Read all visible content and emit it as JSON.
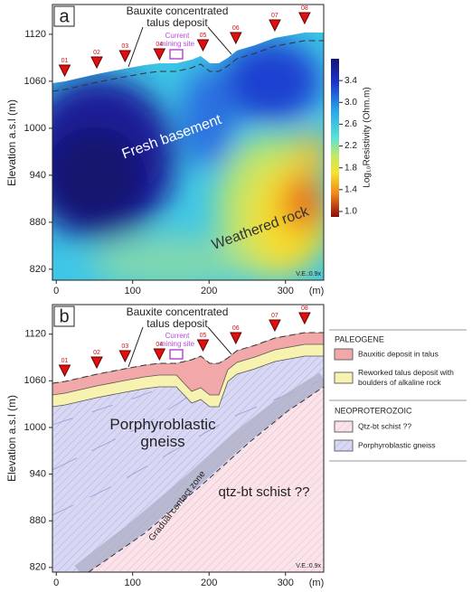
{
  "chart_data": [
    {
      "type": "contour",
      "panel_label": "a",
      "ylabel": "Elevation a.s.l (m)",
      "xunit": "(m)",
      "xlim": [
        -5,
        350
      ],
      "xticks": [
        0,
        100,
        200,
        300
      ],
      "ylim": [
        806,
        1158
      ],
      "yticks": [
        820,
        880,
        940,
        1000,
        1060,
        1120
      ],
      "stations": [
        {
          "label": "01",
          "x": 11
        },
        {
          "label": "02",
          "x": 53
        },
        {
          "label": "03",
          "x": 90
        },
        {
          "label": "04",
          "x": 135
        },
        {
          "label": "05",
          "x": 192
        },
        {
          "label": "06",
          "x": 235
        },
        {
          "label": "07",
          "x": 286
        },
        {
          "label": "08",
          "x": 325
        }
      ],
      "talus_label": [
        "Bauxite concentrated",
        "talus deposit"
      ],
      "site_label": [
        "Current",
        "mining site"
      ],
      "annotations": [
        "Fresh basement",
        "Weathered rock"
      ],
      "scale_note": "V.E.:0.9x",
      "colorbar": {
        "label": "Log₁₀Resistivity (Ohm.m)",
        "lim": [
          0.9,
          3.8
        ],
        "ticks": [
          {
            "value": 1,
            "label": "1.0"
          },
          1.4,
          1.8,
          2.2,
          2.6,
          {
            "value": 3,
            "label": "3.0"
          },
          3.4
        ]
      }
    },
    {
      "type": "section",
      "panel_label": "b",
      "ylabel": "Elevation a.s.l (m)",
      "xunit": "(m)",
      "xlim": [
        -5,
        350
      ],
      "xticks": [
        0,
        100,
        200,
        300
      ],
      "ylim": [
        814,
        1158
      ],
      "yticks": [
        820,
        880,
        940,
        1000,
        1060,
        1120
      ],
      "stations": [
        {
          "label": "01",
          "x": 11
        },
        {
          "label": "02",
          "x": 53
        },
        {
          "label": "03",
          "x": 90
        },
        {
          "label": "04",
          "x": 135
        },
        {
          "label": "05",
          "x": 192
        },
        {
          "label": "06",
          "x": 235
        },
        {
          "label": "07",
          "x": 286
        },
        {
          "label": "08",
          "x": 325
        }
      ],
      "talus_label": [
        "Bauxite concentrated",
        "talus deposit"
      ],
      "site_label": [
        "Current",
        "mining site"
      ],
      "annotations": {
        "gneiss": [
          "Porphyroblastic",
          "gneiss"
        ],
        "contact": "Gradual contact zone",
        "schist": "qtz-bt schist ??"
      },
      "scale_note": "V.E.:0.9x",
      "legend": {
        "groups": [
          {
            "title": "PALEOGENE",
            "items": [
              {
                "lines": [
                  "Bauxitic deposit in talus"
                ],
                "color": "#f2a8a8"
              },
              {
                "lines": [
                  "Reworked talus deposit with",
                  "boulders of alkaline rock"
                ],
                "color": "#f7f2b0"
              }
            ]
          },
          {
            "title": "NEOPROTEROZOIC",
            "items": [
              {
                "lines": [
                  "Qtz-bt schist ??"
                ],
                "color": "#fbe3ea"
              },
              {
                "lines": [
                  "Porphyroblastic gneiss"
                ],
                "color": "#d8d8f4"
              }
            ]
          }
        ]
      }
    }
  ]
}
